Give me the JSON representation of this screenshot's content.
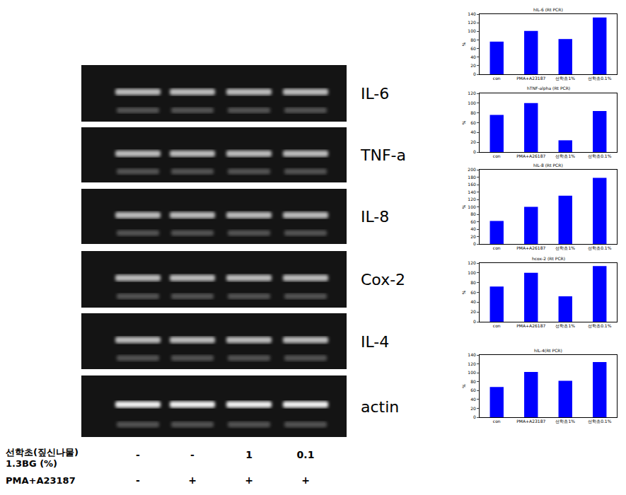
{
  "chart_data": [
    {
      "type": "bar",
      "title": "hIL-6 (Rt PCR)",
      "y_label": "%",
      "categories": [
        "con",
        "PMA+A23187",
        "선학초1%",
        "선학초0.1%"
      ],
      "values": [
        76,
        101,
        82,
        132
      ],
      "color": "#0000ff",
      "ylim": [
        0,
        140
      ],
      "yticks": [
        0,
        20,
        40,
        60,
        80,
        100,
        120,
        140
      ],
      "grid": false
    },
    {
      "type": "bar",
      "title": "hTNF-alpha (Rt PCR)",
      "y_label": "%",
      "categories": [
        "con",
        "PMA+A26187",
        "선학초1%",
        "선학초0.1%"
      ],
      "values": [
        76,
        100,
        24,
        84
      ],
      "color": "#0000ff",
      "ylim": [
        0,
        120
      ],
      "yticks": [
        0,
        20,
        40,
        60,
        80,
        100,
        120
      ],
      "grid": false
    },
    {
      "type": "bar",
      "title": "hIL-8 (Rt PCR)",
      "y_label": "%",
      "categories": [
        "con",
        "PMA+A26187",
        "선학초1%",
        "선학초0.1%"
      ],
      "values": [
        62,
        100,
        130,
        178
      ],
      "color": "#0000ff",
      "ylim": [
        0,
        200
      ],
      "yticks": [
        0,
        20,
        40,
        60,
        80,
        100,
        120,
        140,
        160,
        180,
        200
      ],
      "grid": false
    },
    {
      "type": "bar",
      "title": "hcox-2 (Rt PCR)",
      "y_label": "%",
      "categories": [
        "con",
        "PMA+A26187",
        "선학초1%",
        "선학초0.1%"
      ],
      "values": [
        72,
        100,
        52,
        114
      ],
      "color": "#0000ff",
      "ylim": [
        0,
        120
      ],
      "yticks": [
        0,
        20,
        40,
        60,
        80,
        100,
        120
      ],
      "grid": false
    },
    {
      "type": "bar",
      "title": "hIL-4(Rt PCR)",
      "y_label": "%",
      "categories": [
        "con",
        "PMA+A23187",
        "선학초1%",
        "선학초0.1%"
      ],
      "values": [
        68,
        102,
        82,
        124
      ],
      "color": "#0000ff",
      "ylim": [
        0,
        140
      ],
      "yticks": [
        0,
        20,
        40,
        60,
        80,
        100,
        120,
        140
      ],
      "grid": false
    }
  ],
  "gel": {
    "genes": [
      "IL-6",
      "TNF-a",
      "IL-8",
      "Cox-2",
      "IL-4",
      "actin"
    ],
    "treatments": [
      {
        "label": [
          "선학초(짚신나물)",
          "1.3BG (%)"
        ],
        "values": [
          "-",
          "-",
          "1",
          "0.1"
        ]
      },
      {
        "label": [
          "PMA+A23187"
        ],
        "values": [
          "-",
          "+",
          "+",
          "+"
        ]
      }
    ]
  }
}
